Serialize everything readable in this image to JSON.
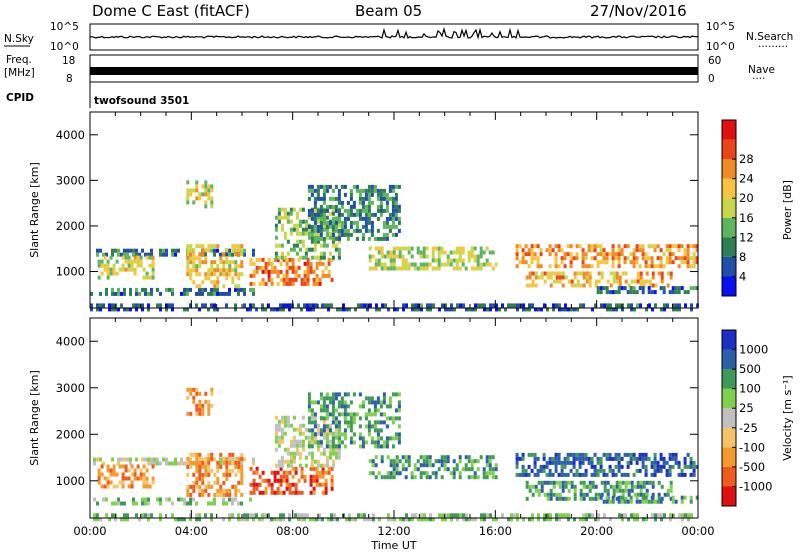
{
  "header": {
    "station": "Dome C East (fitACF)",
    "beam": "Beam 05",
    "date": "27/Nov/2016"
  },
  "aux_panels": {
    "nsky_label": "N.Sky",
    "nsky_ticks": [
      "10^5",
      "10^0"
    ],
    "nsearch_label": "N.Search",
    "nsearch_dots": "·········",
    "freq_label": "Freq.",
    "freq_unit": "[MHz]",
    "freq_ticks": [
      "18",
      "8"
    ],
    "nave_ticks": [
      "60",
      "0"
    ],
    "nave_label": "Nave",
    "nave_dots": "····",
    "cpid_label": "CPID",
    "cpid_value": "twofsound 3501"
  },
  "colors": {
    "power": [
      "#0a10f0",
      "#1f4fa6",
      "#2e7e55",
      "#5fb55f",
      "#c9d64a",
      "#f5c542",
      "#f08a24",
      "#e8451c",
      "#e01010"
    ],
    "velocity": [
      "#e01010",
      "#ef5a1f",
      "#f59a2a",
      "#f3c56a",
      "#c0c0c0",
      "#7fd04f",
      "#3f9a5a",
      "#2c5fa8",
      "#1a2fc4"
    ]
  },
  "chart_data": [
    {
      "type": "heatmap",
      "name": "power",
      "xlabel": "",
      "ylabel": "Slant Range [km]",
      "xlim": [
        0,
        24
      ],
      "ylim": [
        200,
        4500
      ],
      "yticks": [
        "1000",
        "2000",
        "3000",
        "4000"
      ],
      "colorbar_label": "Power [dB]",
      "colorbar_ticks": [
        "4",
        "8",
        "12",
        "16",
        "20",
        "24",
        "28"
      ],
      "colorbar_range": [
        0,
        32
      ],
      "regions": [
        {
          "t0": 0.0,
          "t1": 6.5,
          "r0": 1400,
          "r1": 1500,
          "v": 8
        },
        {
          "t0": 0.0,
          "t1": 6.5,
          "r0": 480,
          "r1": 640,
          "v": 7
        },
        {
          "t0": 0.3,
          "t1": 2.5,
          "r0": 900,
          "r1": 1350,
          "v": 17
        },
        {
          "t0": 3.8,
          "t1": 6.0,
          "r0": 700,
          "r1": 1600,
          "v": 19
        },
        {
          "t0": 6.3,
          "t1": 9.6,
          "r0": 700,
          "r1": 1300,
          "v": 24
        },
        {
          "t0": 7.3,
          "t1": 9.8,
          "r0": 1300,
          "r1": 2400,
          "v": 13
        },
        {
          "t0": 8.6,
          "t1": 12.2,
          "r0": 1700,
          "r1": 2900,
          "v": 9
        },
        {
          "t0": 11.0,
          "t1": 16.0,
          "r0": 1100,
          "r1": 1550,
          "v": 16
        },
        {
          "t0": 16.8,
          "t1": 24.0,
          "r0": 1150,
          "r1": 1600,
          "v": 22
        },
        {
          "t0": 17.2,
          "t1": 23.0,
          "r0": 650,
          "r1": 1000,
          "v": 21
        },
        {
          "t0": 20.0,
          "t1": 24.0,
          "r0": 520,
          "r1": 680,
          "v": 7
        },
        {
          "t0": 3.8,
          "t1": 4.8,
          "r0": 2450,
          "r1": 3000,
          "v": 17
        },
        {
          "t0": 0.0,
          "t1": 24.0,
          "r0": 200,
          "r1": 300,
          "v": 6
        }
      ]
    },
    {
      "type": "heatmap",
      "name": "velocity",
      "xlabel": "Time UT",
      "ylabel": "Slant Range [km]",
      "xlim": [
        0,
        24
      ],
      "ylim": [
        200,
        4500
      ],
      "xticks": [
        "00:00",
        "04:00",
        "08:00",
        "12:00",
        "16:00",
        "20:00",
        "00:00"
      ],
      "yticks": [
        "1000",
        "2000",
        "3000",
        "4000"
      ],
      "colorbar_label": "Velocity [m s⁻¹]",
      "colorbar_ticks": [
        "1000",
        "500",
        "100",
        "25",
        "-25",
        "-100",
        "-500",
        "-1000"
      ],
      "regions": [
        {
          "t0": 0.0,
          "t1": 6.5,
          "r0": 1400,
          "r1": 1500,
          "v": 4
        },
        {
          "t0": 0.3,
          "t1": 2.5,
          "r0": 900,
          "r1": 1350,
          "v": 2
        },
        {
          "t0": 3.8,
          "t1": 6.0,
          "r0": 700,
          "r1": 1600,
          "v": 2
        },
        {
          "t0": 6.3,
          "t1": 9.6,
          "r0": 700,
          "r1": 1300,
          "v": 1
        },
        {
          "t0": 7.3,
          "t1": 9.8,
          "r0": 1300,
          "r1": 2400,
          "v": 4
        },
        {
          "t0": 8.6,
          "t1": 12.2,
          "r0": 1700,
          "r1": 2900,
          "v": 6
        },
        {
          "t0": 11.0,
          "t1": 16.0,
          "r0": 1100,
          "r1": 1550,
          "v": 6
        },
        {
          "t0": 16.8,
          "t1": 24.0,
          "r0": 1150,
          "r1": 1600,
          "v": 7
        },
        {
          "t0": 17.2,
          "t1": 23.0,
          "r0": 650,
          "r1": 1000,
          "v": 6
        },
        {
          "t0": 20.0,
          "t1": 24.0,
          "r0": 520,
          "r1": 680,
          "v": 6
        },
        {
          "t0": 0.0,
          "t1": 6.5,
          "r0": 480,
          "r1": 640,
          "v": 5
        },
        {
          "t0": 3.8,
          "t1": 4.8,
          "r0": 2450,
          "r1": 3000,
          "v": 2
        },
        {
          "t0": 0.0,
          "t1": 24.0,
          "r0": 200,
          "r1": 300,
          "v": 5
        }
      ]
    }
  ]
}
